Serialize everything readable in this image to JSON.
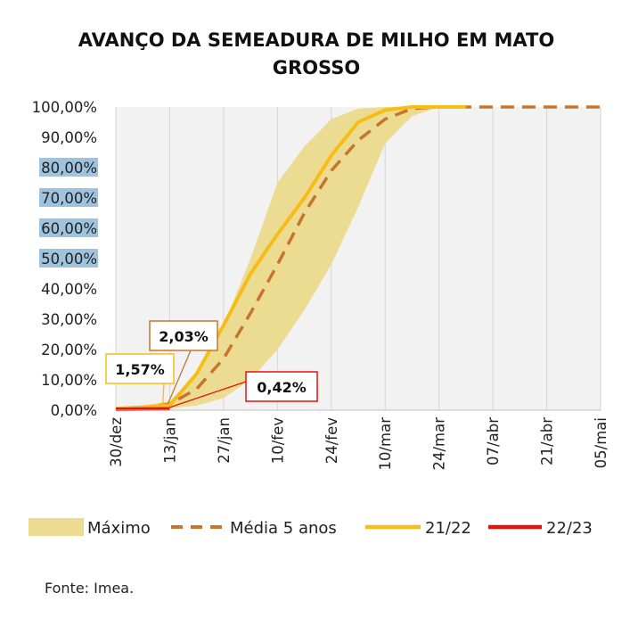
{
  "title": "AVANÇO DA SEMEADURA DE MILHO EM MATO GROSSO",
  "source": "Fonte: Imea.",
  "colors": {
    "range_fill": "#ecdc92",
    "media": "#c8752c",
    "s2122": "#f7bd16",
    "s2223": "#e3120b",
    "plot_bg": "#f2f2f2",
    "grid": "#d6d6d6",
    "highlight": "#9ec3de"
  },
  "chart_data": {
    "type": "area",
    "title": "AVANÇO DA SEMEADURA DE MILHO EM MATO GROSSO",
    "x_tick_labels": [
      "30/dez",
      "13/jan",
      "27/jan",
      "10/fev",
      "24/fev",
      "10/mar",
      "24/mar",
      "07/abr",
      "21/abr",
      "05/mai"
    ],
    "y_tick_labels": [
      "0,00%",
      "10,00%",
      "20,00%",
      "30,00%",
      "40,00%",
      "50,00%",
      "60,00%",
      "70,00%",
      "80,00%",
      "90,00%",
      "100,00%"
    ],
    "x_unit": "days since 30/dez",
    "ylim": [
      0,
      100
    ],
    "highlighted_y_ticks": [
      "50,00%",
      "60,00%",
      "70,00%",
      "80,00%"
    ],
    "range": {
      "name": "Máximo",
      "max": [
        [
          0,
          0.5
        ],
        [
          7,
          1.5
        ],
        [
          14,
          3
        ],
        [
          21,
          12
        ],
        [
          28,
          28
        ],
        [
          35,
          50
        ],
        [
          42,
          75
        ],
        [
          49,
          87
        ],
        [
          56,
          96
        ],
        [
          63,
          99.5
        ],
        [
          70,
          100
        ],
        [
          77,
          100
        ],
        [
          84,
          100
        ]
      ],
      "min": [
        [
          0,
          0
        ],
        [
          7,
          0.3
        ],
        [
          14,
          0.5
        ],
        [
          21,
          1.5
        ],
        [
          28,
          4
        ],
        [
          35,
          10
        ],
        [
          42,
          20
        ],
        [
          49,
          33
        ],
        [
          56,
          48
        ],
        [
          63,
          67
        ],
        [
          70,
          88
        ],
        [
          77,
          97
        ],
        [
          84,
          100
        ]
      ]
    },
    "series": [
      {
        "name": "Média 5 anos",
        "style": "dashed",
        "points": [
          [
            0,
            0.3
          ],
          [
            7,
            0.8
          ],
          [
            14,
            2
          ],
          [
            21,
            7
          ],
          [
            28,
            17
          ],
          [
            35,
            32
          ],
          [
            42,
            48
          ],
          [
            49,
            65
          ],
          [
            56,
            79
          ],
          [
            63,
            89
          ],
          [
            70,
            96
          ],
          [
            77,
            99.5
          ],
          [
            84,
            100
          ],
          [
            98,
            100
          ],
          [
            112,
            100
          ],
          [
            126,
            100
          ],
          [
            127,
            100
          ]
        ]
      },
      {
        "name": "21/22",
        "style": "solid",
        "points": [
          [
            0,
            0.5
          ],
          [
            7,
            1
          ],
          [
            14,
            1.57
          ],
          [
            21,
            12
          ],
          [
            28,
            28
          ],
          [
            35,
            45
          ],
          [
            42,
            58
          ],
          [
            49,
            70
          ],
          [
            56,
            84
          ],
          [
            63,
            95
          ],
          [
            70,
            99
          ],
          [
            77,
            100
          ],
          [
            84,
            100
          ],
          [
            91,
            100
          ]
        ]
      },
      {
        "name": "22/23",
        "style": "solid",
        "points": [
          [
            0,
            0.3
          ],
          [
            7,
            0.35
          ],
          [
            14,
            0.42
          ]
        ]
      }
    ],
    "annotations": [
      {
        "text": "1,57%",
        "series": "21/22",
        "x": 14,
        "y": 1.57
      },
      {
        "text": "2,03%",
        "series": "Média 5 anos",
        "x": 14,
        "y": 2.03
      },
      {
        "text": "0,42%",
        "series": "22/23",
        "x": 14,
        "y": 0.42
      }
    ],
    "legend": {
      "position": "bottom",
      "items": [
        "Máximo",
        "Média 5 anos",
        "21/22",
        "22/23"
      ]
    },
    "grid": "vertical"
  }
}
